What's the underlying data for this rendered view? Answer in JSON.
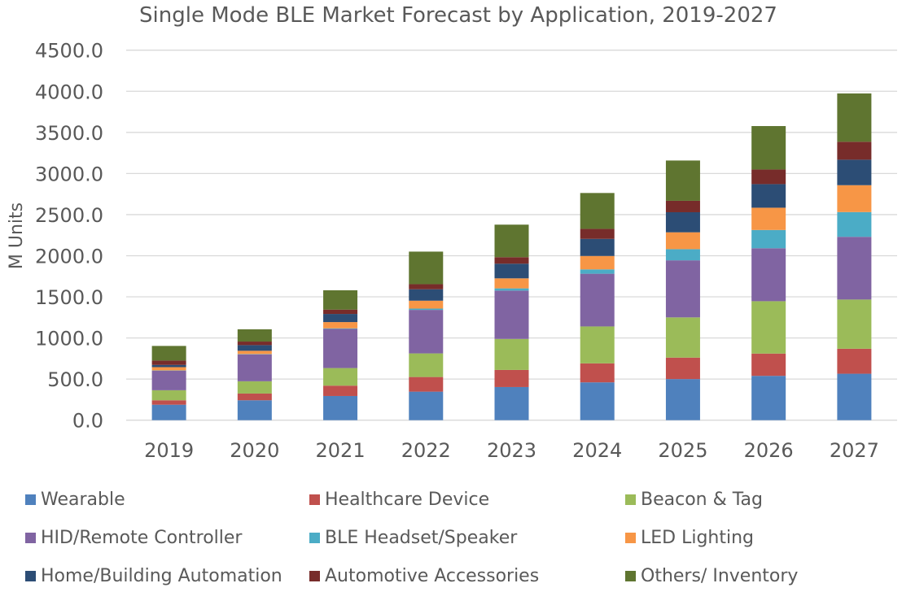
{
  "chart_data": {
    "type": "bar",
    "stacked": true,
    "title": "Single Mode BLE Market Forecast by Application, 2019-2027",
    "xlabel": "",
    "ylabel": "M Units",
    "ylim": [
      0,
      4500
    ],
    "yticks": [
      "0.0",
      "500.0",
      "1000.0",
      "1500.0",
      "2000.0",
      "2500.0",
      "3000.0",
      "3500.0",
      "4000.0",
      "4500.0"
    ],
    "ytick_values": [
      0,
      500,
      1000,
      1500,
      2000,
      2500,
      3000,
      3500,
      4000,
      4500
    ],
    "grid": true,
    "legend_position": "bottom",
    "categories": [
      "2019",
      "2020",
      "2021",
      "2022",
      "2023",
      "2024",
      "2025",
      "2026",
      "2027"
    ],
    "series": [
      {
        "name": "Wearable",
        "color": "#4F81BD",
        "values": [
          188,
          242,
          294,
          347,
          403,
          460,
          500,
          539,
          565
        ]
      },
      {
        "name": "Healthcare Device",
        "color": "#C0504D",
        "values": [
          54,
          82,
          126,
          178,
          208,
          231,
          261,
          271,
          304
        ]
      },
      {
        "name": "Beacon & Tag",
        "color": "#9BBB59",
        "values": [
          122,
          149,
          214,
          287,
          377,
          449,
          489,
          637,
          598
        ]
      },
      {
        "name": "HID/Remote Controller",
        "color": "#8064A2",
        "values": [
          238,
          327,
          476,
          529,
          588,
          641,
          694,
          644,
          763
        ]
      },
      {
        "name": "BLE Headset/Speaker",
        "color": "#4BACC6",
        "values": [
          3,
          4,
          7,
          16,
          27,
          53,
          136,
          222,
          301
        ]
      },
      {
        "name": "LED Lighting",
        "color": "#F79646",
        "values": [
          40,
          40,
          76,
          96,
          122,
          163,
          205,
          271,
          327
        ]
      },
      {
        "name": "Home/Building Automation",
        "color": "#2C4D75",
        "values": [
          27,
          69,
          99,
          139,
          178,
          208,
          244,
          287,
          310
        ]
      },
      {
        "name": "Automotive Accessories",
        "color": "#772C2A",
        "values": [
          53,
          43,
          53,
          62,
          79,
          122,
          139,
          178,
          218
        ]
      },
      {
        "name": "Others/ Inventory",
        "color": "#5F7530",
        "values": [
          178,
          149,
          235,
          396,
          396,
          436,
          490,
          528,
          588
        ]
      }
    ]
  }
}
